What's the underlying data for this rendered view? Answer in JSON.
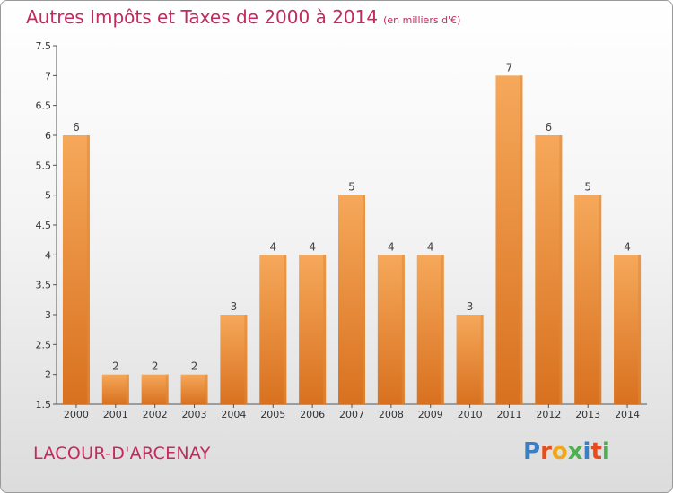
{
  "header": {
    "title": "Autres Impôts et Taxes de 2000 à 2014",
    "subtitle": "(en milliers d'€)"
  },
  "footer": {
    "commune": "LACOUR-D'ARCENAY",
    "logo": [
      "P",
      "r",
      "o",
      "x",
      "i",
      "t",
      "i"
    ],
    "logo_colors": [
      "#3a7fc4",
      "#e84c1c",
      "#f2a71b",
      "#4caf50",
      "#3a7fc4",
      "#e84c1c",
      "#4caf50"
    ]
  },
  "colors": {
    "bar_top": "#f6a85a",
    "bar_bottom": "#d8711f",
    "bar_side": "#e08a36",
    "accent": "#c42a5c"
  },
  "chart_data": {
    "type": "bar",
    "title": "Autres Impôts et Taxes de 2000 à 2014",
    "subtitle": "(en milliers d'€)",
    "categories": [
      "2000",
      "2001",
      "2002",
      "2003",
      "2004",
      "2005",
      "2006",
      "2007",
      "2008",
      "2009",
      "2010",
      "2011",
      "2012",
      "2013",
      "2014"
    ],
    "values": [
      6,
      2,
      2,
      2,
      3,
      4,
      4,
      5,
      4,
      4,
      3,
      7,
      6,
      5,
      4
    ],
    "ylim": [
      1.5,
      7.5
    ],
    "yticks": [
      1.5,
      2,
      2.5,
      3,
      3.5,
      4,
      4.5,
      5,
      5.5,
      6,
      6.5,
      7,
      7.5
    ],
    "ytick_labels": [
      "1.5",
      "2",
      "2.5",
      "3",
      "3.5",
      "4",
      "4.5",
      "5",
      "5.5",
      "6",
      "6.5",
      "7",
      "7.5"
    ],
    "grid": false,
    "legend": "none"
  }
}
